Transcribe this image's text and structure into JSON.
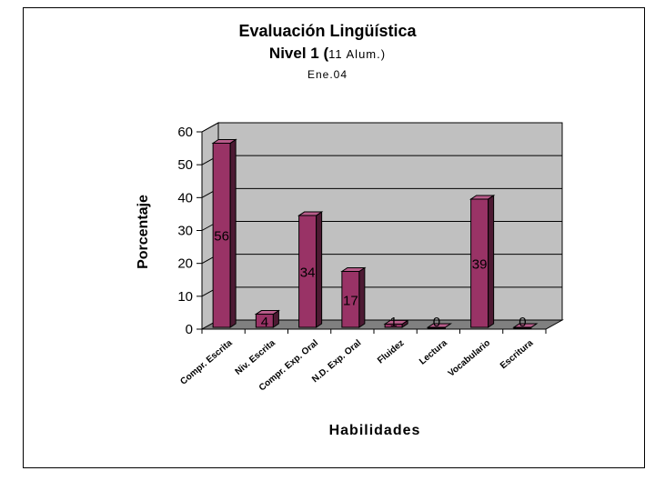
{
  "chart_data": {
    "type": "bar",
    "title": "Evaluación Lingüística",
    "subtitle_main": "Nivel 1 (",
    "subtitle_small": "11 Alum.)",
    "date_label": "Ene.04",
    "xlabel": "Habilidades",
    "ylabel": "Porcentaje",
    "ylim": [
      0,
      60
    ],
    "yticks": [
      "0",
      "10",
      "20",
      "30",
      "40",
      "50",
      "60"
    ],
    "grid": true,
    "legend": "none",
    "categories": [
      "Compr. Escrita",
      "Niv. Escrita",
      "Compr. Exp. Oral",
      "N.D. Exp. Oral",
      "Fluidez",
      "Lectura",
      "Vocabulario",
      "Escritura"
    ],
    "values": [
      56,
      4,
      34,
      17,
      1,
      0,
      39,
      0
    ],
    "colors": {
      "bar_front": "#993366",
      "bar_side": "#4d1a33",
      "bar_top": "#b85c8a",
      "wall": "#c0c0c0",
      "floor": "#808080"
    }
  }
}
